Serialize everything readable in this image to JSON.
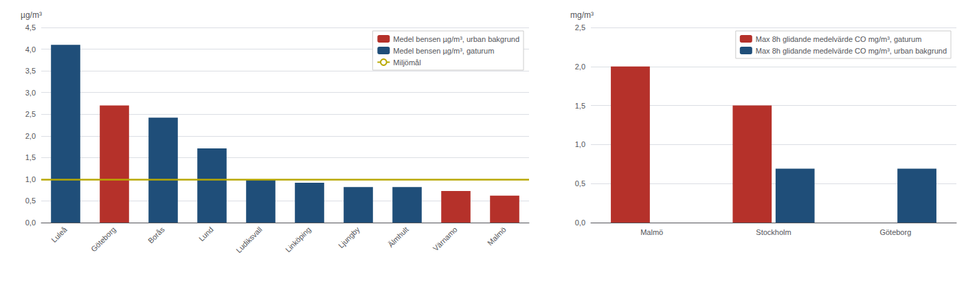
{
  "chart_data": [
    {
      "type": "bar",
      "categories": [
        "Luleå",
        "Göteborg",
        "Borås",
        "Lund",
        "Ludiksvall",
        "Linköping",
        "Ljungby",
        "Älmhult",
        "Värnamo",
        "Malmö"
      ],
      "series": [
        {
          "name": "Medel bensen µg/m³, urban bakgrund",
          "color": "#b5312a",
          "values": [
            null,
            2.7,
            null,
            null,
            null,
            null,
            null,
            null,
            0.73,
            0.62
          ]
        },
        {
          "name": "Medel bensen µg/m³, gaturum",
          "color": "#1f4e79",
          "values": [
            4.1,
            null,
            2.42,
            1.71,
            1.0,
            0.92,
            0.82,
            0.82,
            null,
            null
          ]
        },
        {
          "name": "Miljömål",
          "type": "hline",
          "color": "#b8a800",
          "value": 1.0
        }
      ],
      "stacked": true,
      "ylabel": "µg/m³",
      "ylim": [
        0,
        4.5
      ],
      "yticks": [
        {
          "value": 0.0,
          "label": "0,0"
        },
        {
          "value": 0.5,
          "label": "0,5"
        },
        {
          "value": 1.0,
          "label": "1,0"
        },
        {
          "value": 1.5,
          "label": "1,5"
        },
        {
          "value": 2.0,
          "label": "2,0"
        },
        {
          "value": 2.5,
          "label": "2,5"
        },
        {
          "value": 3.0,
          "label": "3,0"
        },
        {
          "value": 3.5,
          "label": "3,5"
        },
        {
          "value": 4.0,
          "label": "4,0"
        },
        {
          "value": 4.5,
          "label": "4,5"
        }
      ],
      "grid": true,
      "legend": "upper right"
    },
    {
      "type": "bar",
      "categories": [
        "Malmö",
        "Stockholm",
        "Göteborg"
      ],
      "series": [
        {
          "name": "Max 8h glidande medelvärde CO mg/m³, gaturum",
          "color": "#b5312a",
          "values": [
            2.0,
            1.5,
            null
          ]
        },
        {
          "name": "Max 8h glidande medelvärde CO mg/m³, urban bakgrund",
          "color": "#1f4e79",
          "values": [
            null,
            0.69,
            0.69
          ]
        }
      ],
      "ylabel": "mg/m³",
      "ylim": [
        0,
        2.5
      ],
      "yticks": [
        {
          "value": 0.0,
          "label": "0,0"
        },
        {
          "value": 0.5,
          "label": "0,5"
        },
        {
          "value": 1.0,
          "label": "1,0"
        },
        {
          "value": 1.5,
          "label": "1,5"
        },
        {
          "value": 2.0,
          "label": "2,0"
        },
        {
          "value": 2.5,
          "label": "2,5"
        }
      ],
      "grid": true,
      "legend": "upper right"
    }
  ]
}
